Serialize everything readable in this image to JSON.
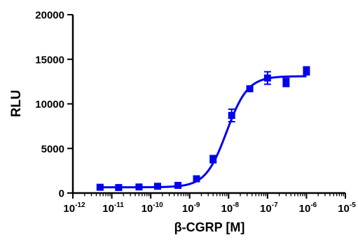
{
  "chart_data": {
    "type": "scatter",
    "title": "",
    "xlabel": "β-CGRP [M]",
    "ylabel": "RLU",
    "x_scale": "log",
    "xlim": [
      1e-12,
      1e-05
    ],
    "ylim": [
      0,
      20000
    ],
    "grid": false,
    "legend": "none",
    "color": "#0000ee",
    "x_ticks": [
      {
        "value": 1e-12,
        "base": "10",
        "exp": "-12"
      },
      {
        "value": 1e-11,
        "base": "10",
        "exp": "-11"
      },
      {
        "value": 1e-10,
        "base": "10",
        "exp": "-10"
      },
      {
        "value": 1e-09,
        "base": "10",
        "exp": "-9"
      },
      {
        "value": 1e-08,
        "base": "10",
        "exp": "-8"
      },
      {
        "value": 1e-07,
        "base": "10",
        "exp": "-7"
      },
      {
        "value": 1e-06,
        "base": "10",
        "exp": "-6"
      },
      {
        "value": 1e-05,
        "base": "10",
        "exp": "-5"
      }
    ],
    "y_ticks": [
      {
        "value": 0,
        "label": "0"
      },
      {
        "value": 5000,
        "label": "5000"
      },
      {
        "value": 10000,
        "label": "10000"
      },
      {
        "value": 15000,
        "label": "15000"
      },
      {
        "value": 20000,
        "label": "20000"
      }
    ],
    "series": [
      {
        "points": [
          {
            "x": 5e-12,
            "y": 650,
            "err": 150
          },
          {
            "x": 1.5e-11,
            "y": 620,
            "err": 150
          },
          {
            "x": 5e-11,
            "y": 680,
            "err": 150
          },
          {
            "x": 1.5e-10,
            "y": 760,
            "err": 150
          },
          {
            "x": 5e-10,
            "y": 860,
            "err": 150
          },
          {
            "x": 1.5e-09,
            "y": 1600,
            "err": 200
          },
          {
            "x": 4e-09,
            "y": 3800,
            "err": 400
          },
          {
            "x": 1.2e-08,
            "y": 8700,
            "err": 700
          },
          {
            "x": 3.5e-08,
            "y": 11700,
            "err": 300
          },
          {
            "x": 1e-07,
            "y": 12900,
            "err": 700
          },
          {
            "x": 3e-07,
            "y": 12400,
            "err": 450
          },
          {
            "x": 1e-06,
            "y": 13700,
            "err": 450
          }
        ],
        "fit": {
          "bottom": 650,
          "top": 13100,
          "logEC50": -8.05,
          "hill": 1.6,
          "x_range": [
            5e-12,
            1e-06
          ]
        }
      }
    ]
  }
}
